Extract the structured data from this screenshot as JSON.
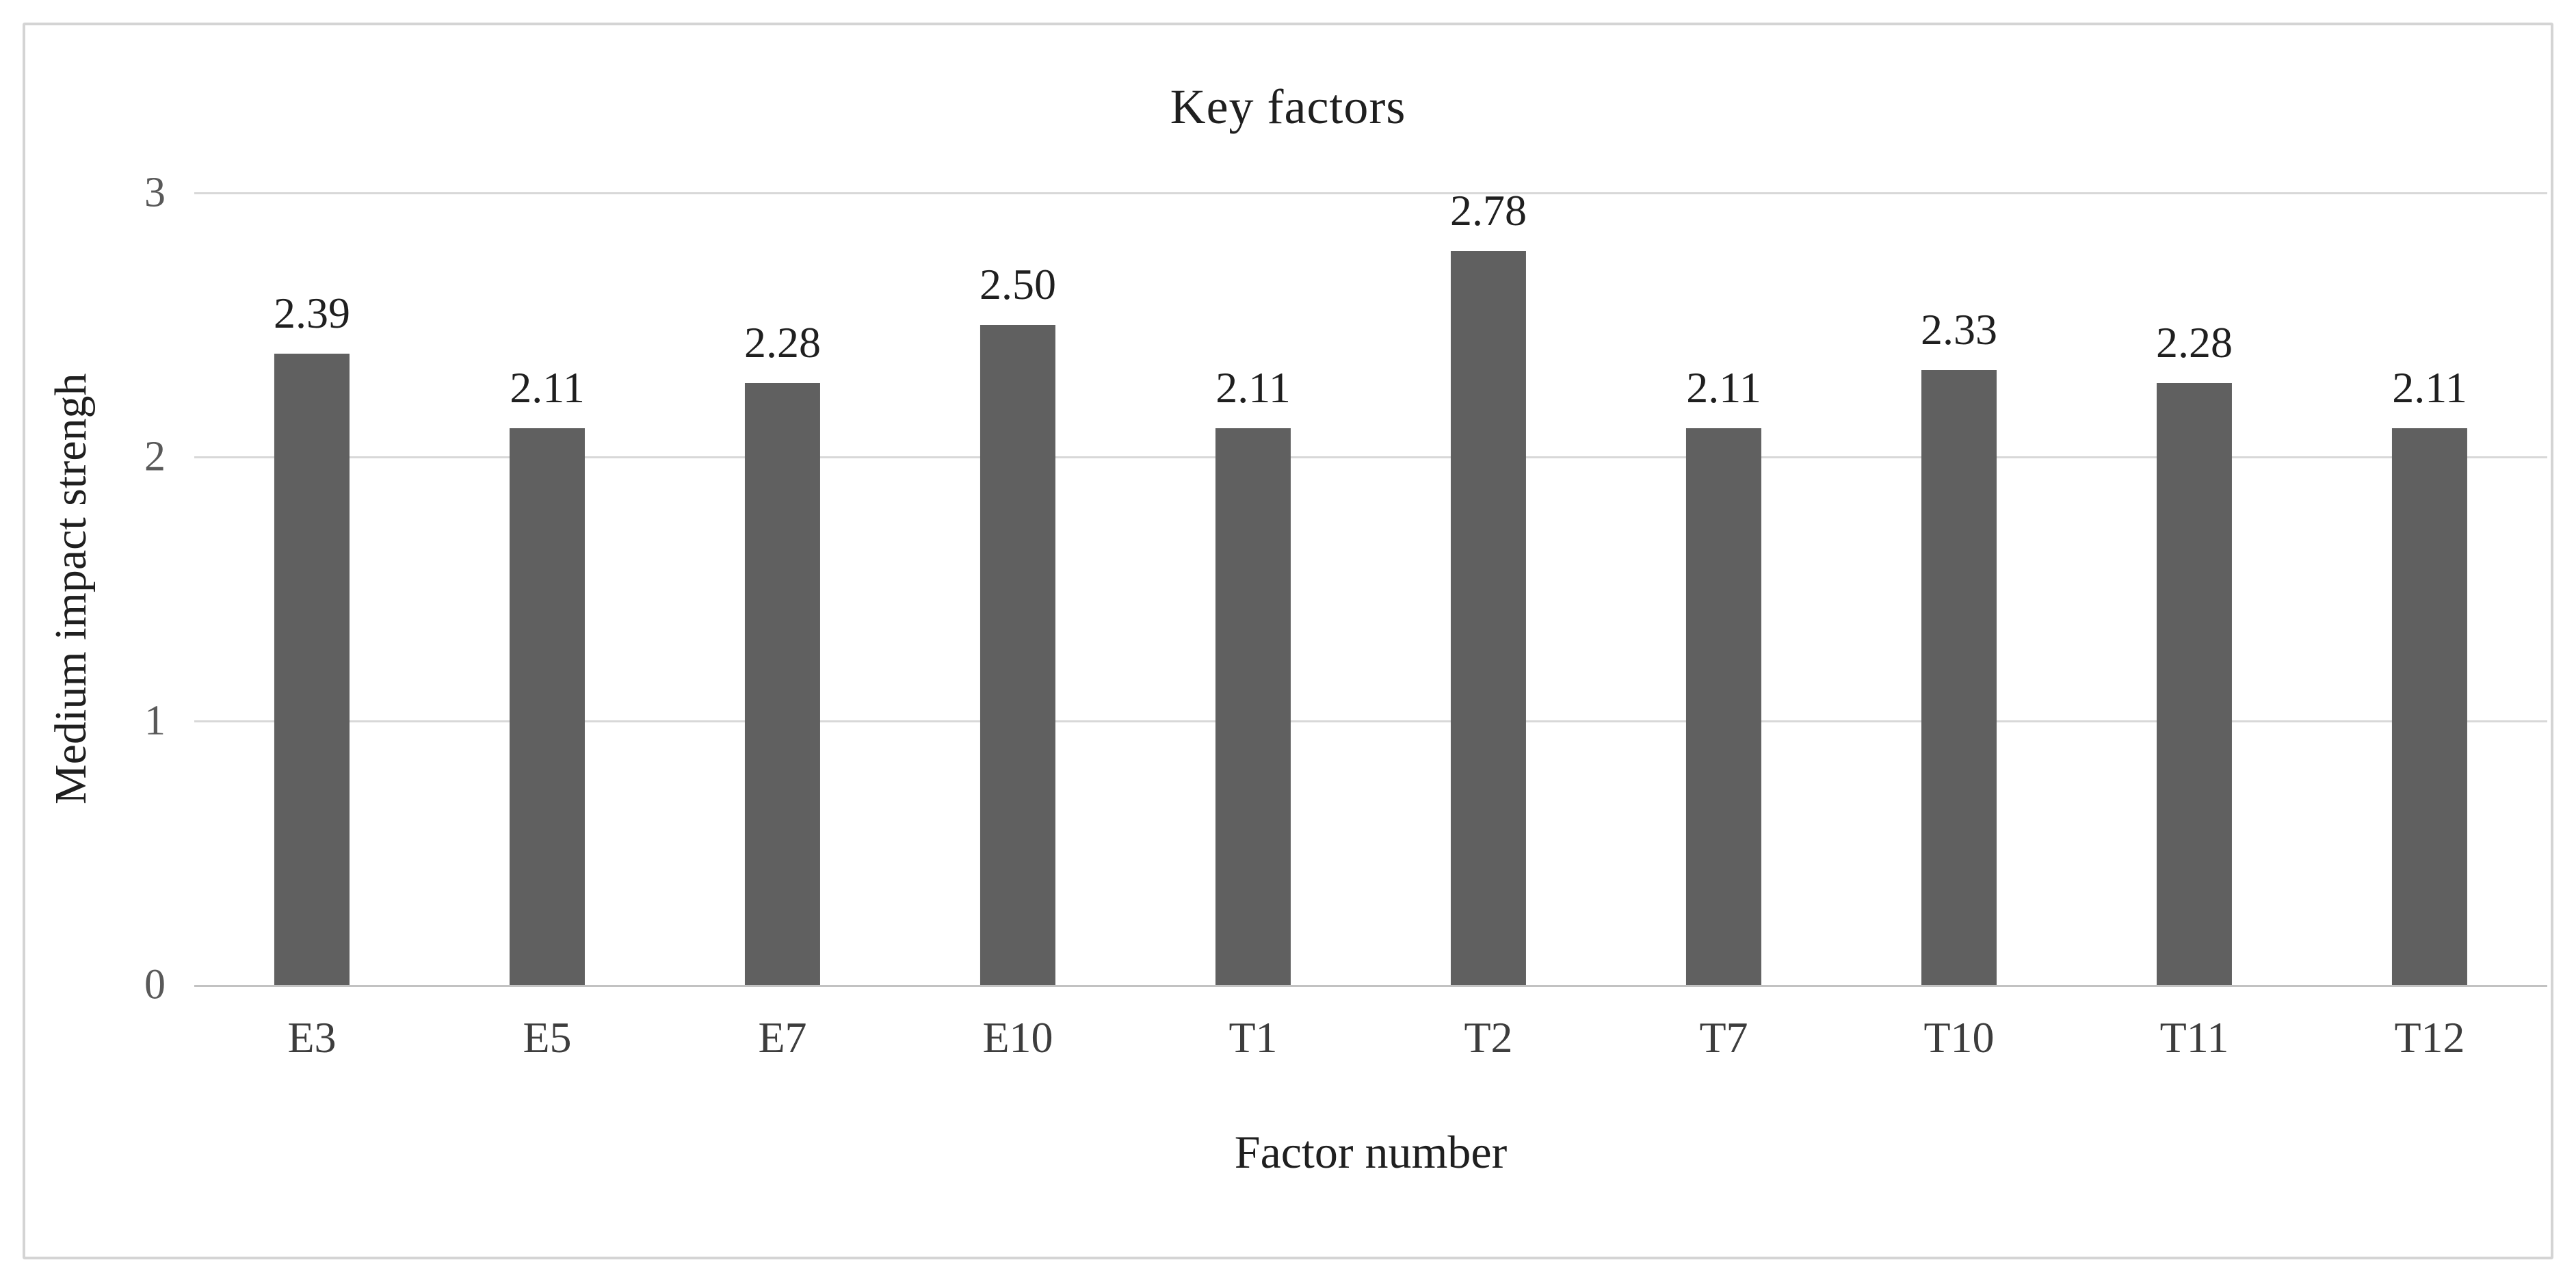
{
  "chart_data": {
    "type": "bar",
    "title": "Key factors",
    "xlabel": "Factor number",
    "ylabel": "Medium impact strengh",
    "categories": [
      "E3",
      "E5",
      "E7",
      "E10",
      "T1",
      "T2",
      "T7",
      "T10",
      "T11",
      "T12"
    ],
    "values": [
      2.39,
      2.11,
      2.28,
      2.5,
      2.11,
      2.78,
      2.11,
      2.33,
      2.28,
      2.11
    ],
    "value_labels": [
      "2.39",
      "2.11",
      "2.28",
      "2.50",
      "2.11",
      "2.78",
      "2.11",
      "2.33",
      "2.28",
      "2.11"
    ],
    "ylim": [
      0,
      3
    ],
    "yticks": [
      0,
      1,
      2,
      3
    ],
    "ytick_labels": [
      "0",
      "1",
      "2",
      "3"
    ],
    "grid": "horizontal-on",
    "legend": "none",
    "bar_color": "#606060"
  },
  "colors": {
    "background": "#ffffff",
    "frame_border": "#d4d4d4",
    "gridline": "#d8d8d8",
    "axis_line": "#c2c2c2",
    "tick_text": "#595959",
    "category_text": "#3d3d3d",
    "text": "#1f1f1f"
  }
}
